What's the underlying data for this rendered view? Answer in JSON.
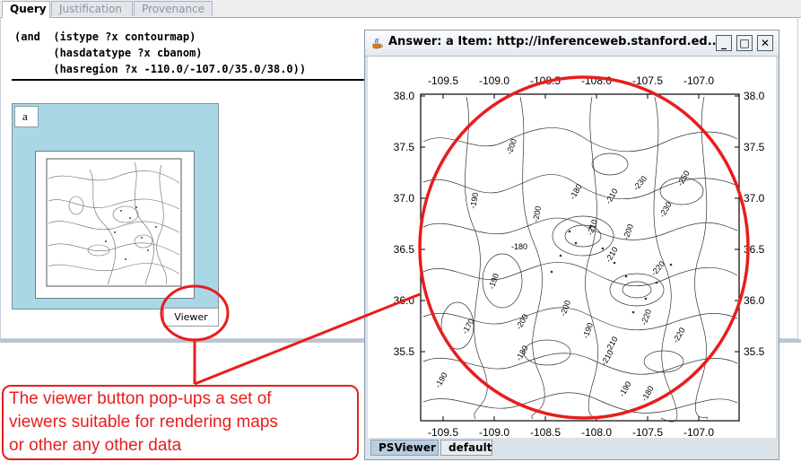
{
  "main_window": {
    "tabs": [
      {
        "label": "Query",
        "active": true
      },
      {
        "label": "Justification",
        "active": false
      },
      {
        "label": "Provenance",
        "active": false
      }
    ],
    "query_lines": [
      "(and  (istype ?x contourmap)",
      "      (hasdatatype ?x cbanom)",
      "      (hasregion ?x -110.0/-107.0/35.0/38.0))"
    ],
    "result_panel": {
      "label": "a",
      "viewer_button_label": "Viewer"
    }
  },
  "popup": {
    "title": "Answer: a Item: http://inferenceweb.stanford.ed...",
    "controls": {
      "minimize": "_",
      "maximize": "□",
      "close": "✕"
    },
    "tabs": [
      {
        "label": "PSViewer",
        "active": true
      },
      {
        "label": "default",
        "active": false
      }
    ],
    "map": {
      "x_ticks": [
        "-109.5",
        "-109.0",
        "-108.5",
        "-108.0",
        "-107.5",
        "-107.0"
      ],
      "y_ticks": [
        "38.0",
        "37.5",
        "37.0",
        "36.5",
        "36.0",
        "35.5"
      ],
      "contour_labels": [
        "-200",
        "-190",
        "-180",
        "-210",
        "-230",
        "-250",
        "-180",
        "-210",
        "-210",
        "-200",
        "-220",
        "-190",
        "-170",
        "-200",
        "-200",
        "-190",
        "-210",
        "-220",
        "-180",
        "-190",
        "-210",
        "-190",
        "-180",
        "-220",
        "-200",
        "-230"
      ]
    }
  },
  "annotation": {
    "callout_lines": [
      "The viewer button pop-ups a set of",
      "viewers suitable for rendering maps",
      "or other any other data"
    ],
    "color": "#e81d1d"
  },
  "icons": [
    "java-cup-icon",
    "minimize-icon",
    "maximize-icon",
    "close-icon"
  ]
}
